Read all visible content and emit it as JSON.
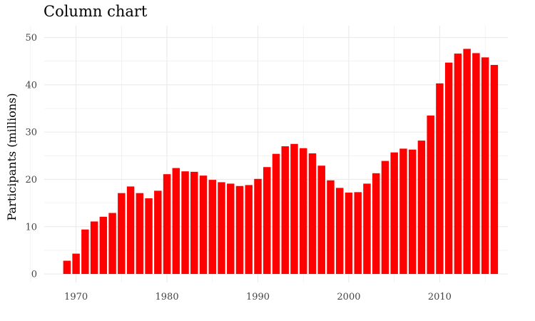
{
  "chart_data": {
    "type": "bar",
    "title": "Column chart",
    "xlabel": "",
    "ylabel": "Participants (millions)",
    "x": [
      1969,
      1970,
      1971,
      1972,
      1973,
      1974,
      1975,
      1976,
      1977,
      1978,
      1979,
      1980,
      1981,
      1982,
      1983,
      1984,
      1985,
      1986,
      1987,
      1988,
      1989,
      1990,
      1991,
      1992,
      1993,
      1994,
      1995,
      1996,
      1997,
      1998,
      1999,
      2000,
      2001,
      2002,
      2003,
      2004,
      2005,
      2006,
      2007,
      2008,
      2009,
      2010,
      2011,
      2012,
      2013,
      2014,
      2015,
      2016
    ],
    "values": [
      2.8,
      4.3,
      9.4,
      11.1,
      12.1,
      12.9,
      17.1,
      18.5,
      17.1,
      16.0,
      17.6,
      21.1,
      22.4,
      21.7,
      21.6,
      20.8,
      19.9,
      19.4,
      19.1,
      18.6,
      18.8,
      20.1,
      22.6,
      25.4,
      27.0,
      27.5,
      26.6,
      25.5,
      22.9,
      19.8,
      18.2,
      17.2,
      17.3,
      19.1,
      21.3,
      23.9,
      25.7,
      26.5,
      26.3,
      28.2,
      33.5,
      40.3,
      44.7,
      46.6,
      47.6,
      46.7,
      45.8,
      44.2
    ],
    "xticks": [
      1970,
      1980,
      1990,
      2000,
      2010
    ],
    "yticks": [
      0,
      10,
      20,
      30,
      40,
      50
    ],
    "xlim": [
      1966.5,
      2017.5
    ],
    "ylim": [
      -1.8,
      52.5
    ],
    "grid": true,
    "bar_color": "#ff0000",
    "grid_color": "#ebebeb"
  }
}
